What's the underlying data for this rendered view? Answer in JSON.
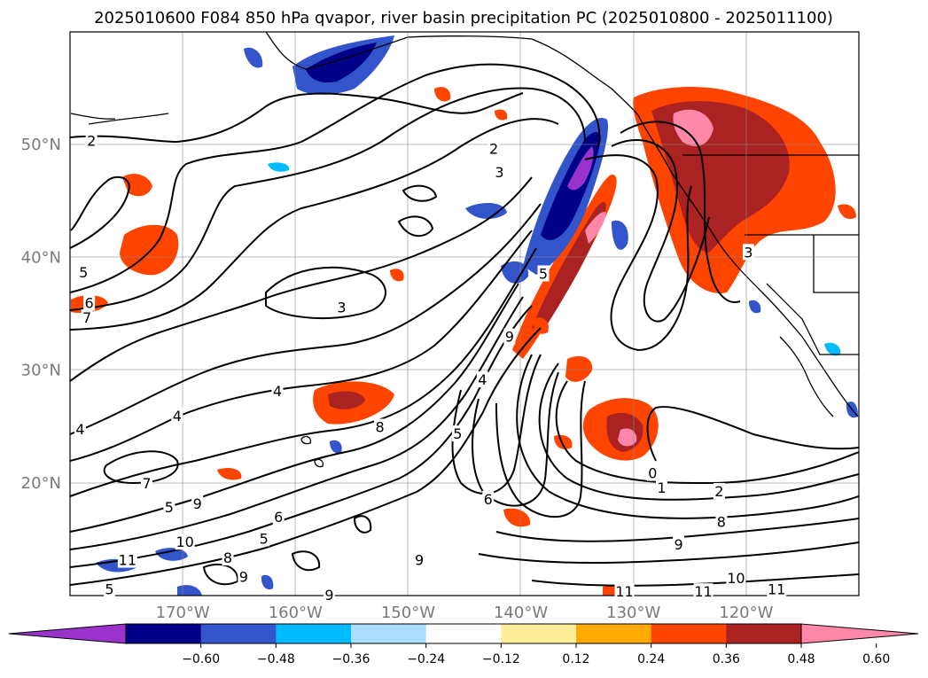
{
  "title": "2025010600 F084 850 hPa qvapor, river basin precipitation PC (2025010800 - 2025011100)",
  "map": {
    "lon_range": [
      -180,
      -110
    ],
    "lat_range": [
      10,
      60
    ],
    "lat_ticks": [
      {
        "value": 50,
        "label": "50°N"
      },
      {
        "value": 40,
        "label": "40°N"
      },
      {
        "value": 30,
        "label": "30°N"
      },
      {
        "value": 20,
        "label": "20°N"
      }
    ],
    "lon_ticks": [
      {
        "value": -170,
        "label": "170°W"
      },
      {
        "value": -160,
        "label": "160°W"
      },
      {
        "value": -150,
        "label": "150°W"
      },
      {
        "value": -140,
        "label": "140°W"
      },
      {
        "value": -130,
        "label": "130°W"
      },
      {
        "value": -120,
        "label": "120°W"
      }
    ],
    "grid": true
  },
  "colorbar": {
    "orientation": "horizontal",
    "extend": "both",
    "colors": [
      "#9933cc",
      "#000088",
      "#3355cc",
      "#00bbff",
      "#aaddff",
      "#ffffff",
      "#ffee99",
      "#ffaa00",
      "#ff4400",
      "#aa2222",
      "#ff88aa"
    ],
    "ticks": [
      "−0.60",
      "−0.48",
      "−0.36",
      "−0.24",
      "−0.12",
      "0.12",
      "0.24",
      "0.36",
      "0.48",
      "0.60"
    ]
  },
  "contour_labels": [
    {
      "text": "2",
      "lon": -178.1,
      "lat": 50.3
    },
    {
      "text": "2",
      "lon": -142.4,
      "lat": 49.6
    },
    {
      "text": "3",
      "lon": -141.9,
      "lat": 47.5
    },
    {
      "text": "5",
      "lon": -178.8,
      "lat": 38.6
    },
    {
      "text": "6",
      "lon": -178.3,
      "lat": 35.9
    },
    {
      "text": "7",
      "lon": -178.5,
      "lat": 34.6
    },
    {
      "text": "3",
      "lon": -155.9,
      "lat": 35.5
    },
    {
      "text": "4",
      "lon": -161.6,
      "lat": 28.1
    },
    {
      "text": "4",
      "lon": -170.5,
      "lat": 25.9
    },
    {
      "text": "4",
      "lon": -179.1,
      "lat": 24.7
    },
    {
      "text": "8",
      "lon": -152.5,
      "lat": 24.9
    },
    {
      "text": "7",
      "lon": -173.2,
      "lat": 19.9
    },
    {
      "text": "5",
      "lon": -171.2,
      "lat": 17.8
    },
    {
      "text": "9",
      "lon": -168.7,
      "lat": 18.1
    },
    {
      "text": "6",
      "lon": -161.5,
      "lat": 16.9
    },
    {
      "text": "5",
      "lon": -162.8,
      "lat": 15.0
    },
    {
      "text": "10",
      "lon": -169.8,
      "lat": 14.7
    },
    {
      "text": "11",
      "lon": -174.9,
      "lat": 13.1
    },
    {
      "text": "8",
      "lon": -166.0,
      "lat": 13.3
    },
    {
      "text": "9",
      "lon": -164.6,
      "lat": 11.6
    },
    {
      "text": "5",
      "lon": -176.5,
      "lat": 10.5
    },
    {
      "text": "9",
      "lon": -157.0,
      "lat": 10.0
    },
    {
      "text": "9",
      "lon": -149.0,
      "lat": 13.1
    },
    {
      "text": "6",
      "lon": -142.9,
      "lat": 18.5
    },
    {
      "text": "5",
      "lon": -145.6,
      "lat": 24.3
    },
    {
      "text": "4",
      "lon": -143.4,
      "lat": 29.1
    },
    {
      "text": "9",
      "lon": -141.0,
      "lat": 32.9
    },
    {
      "text": "5",
      "lon": -138.0,
      "lat": 38.5
    },
    {
      "text": "0",
      "lon": -128.3,
      "lat": 20.8
    },
    {
      "text": "1",
      "lon": -127.5,
      "lat": 19.5
    },
    {
      "text": "2",
      "lon": -122.4,
      "lat": 19.2
    },
    {
      "text": "8",
      "lon": -122.2,
      "lat": 16.5
    },
    {
      "text": "9",
      "lon": -126.0,
      "lat": 14.5
    },
    {
      "text": "10",
      "lon": -120.9,
      "lat": 11.5
    },
    {
      "text": "11",
      "lon": -130.8,
      "lat": 10.3
    },
    {
      "text": "11",
      "lon": -123.8,
      "lat": 10.3
    },
    {
      "text": "11",
      "lon": -117.3,
      "lat": 10.5
    },
    {
      "text": "3",
      "lon": -119.8,
      "lat": 40.4
    }
  ]
}
